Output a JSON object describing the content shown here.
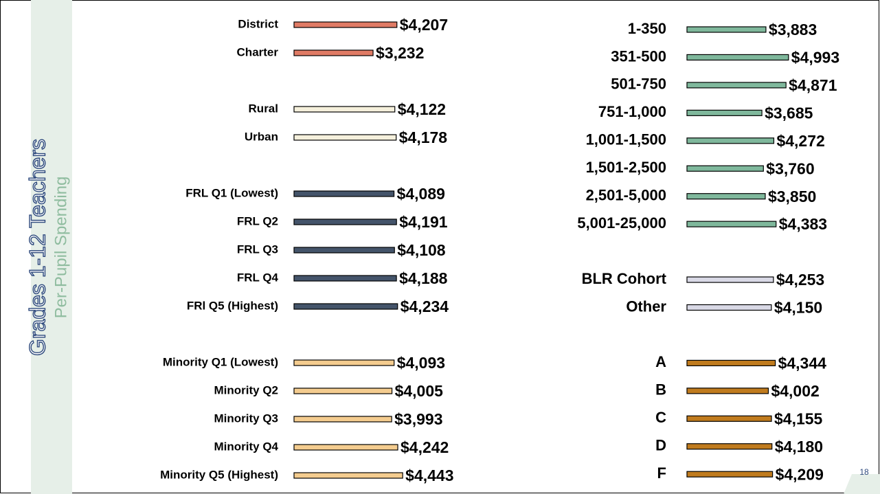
{
  "title": "Grades 1-12 Teachers",
  "subtitle": "Per-Pupil Spending",
  "page_number": "18",
  "chart_data": [
    {
      "type": "bar",
      "color": "#e07b65",
      "categories": [
        "District",
        "Charter"
      ],
      "values": [
        4207,
        3232
      ],
      "value_labels": [
        "$4,207",
        "$3,232"
      ]
    },
    {
      "type": "bar",
      "color": "#f5f0dc",
      "categories": [
        "Rural",
        "Urban"
      ],
      "values": [
        4122,
        4178
      ],
      "value_labels": [
        "$4,122",
        "$4,178"
      ]
    },
    {
      "type": "bar",
      "color": "#44546a",
      "categories": [
        "FRL Q1 (Lowest)",
        "FRL Q2",
        "FRL Q3",
        "FRL Q4",
        "FRl Q5 (Highest)"
      ],
      "values": [
        4089,
        4191,
        4108,
        4188,
        4234
      ],
      "value_labels": [
        "$4,089",
        "$4,191",
        "$4,108",
        "$4,188",
        "$4,234"
      ]
    },
    {
      "type": "bar",
      "color": "#f4cc8f",
      "categories": [
        "Minority Q1 (Lowest)",
        "Minority Q2",
        "Minority Q3",
        "Minority Q4",
        "Minority Q5 (Highest)"
      ],
      "values": [
        4093,
        4005,
        3993,
        4242,
        4443
      ],
      "value_labels": [
        "$4,093",
        "$4,005",
        "$3,993",
        "$4,242",
        "$4,443"
      ]
    },
    {
      "type": "bar",
      "color": "#7fb89c",
      "categories": [
        "1-350",
        "351-500",
        "501-750",
        "751-1,000",
        "1,001-1,500",
        "1,501-2,500",
        "2,501-5,000",
        "5,001-25,000"
      ],
      "values": [
        3883,
        4993,
        4871,
        3685,
        4272,
        3760,
        3850,
        4383
      ],
      "value_labels": [
        "$3,883",
        "$4,993",
        "$4,871",
        "$3,685",
        "$4,272",
        "$3,760",
        "$3,850",
        "$4,383"
      ]
    },
    {
      "type": "bar",
      "color": "#d9d9e6",
      "categories": [
        "BLR Cohort",
        "Other"
      ],
      "values": [
        4253,
        4150
      ],
      "value_labels": [
        "$4,253",
        "$4,150"
      ]
    },
    {
      "type": "bar",
      "color": "#c07b1e",
      "categories": [
        "A",
        "B",
        "C",
        "D",
        "F"
      ],
      "values": [
        4344,
        4002,
        4155,
        4180,
        4209
      ],
      "value_labels": [
        "$4,344",
        "$4,002",
        "$4,155",
        "$4,180",
        "$4,209"
      ]
    }
  ]
}
